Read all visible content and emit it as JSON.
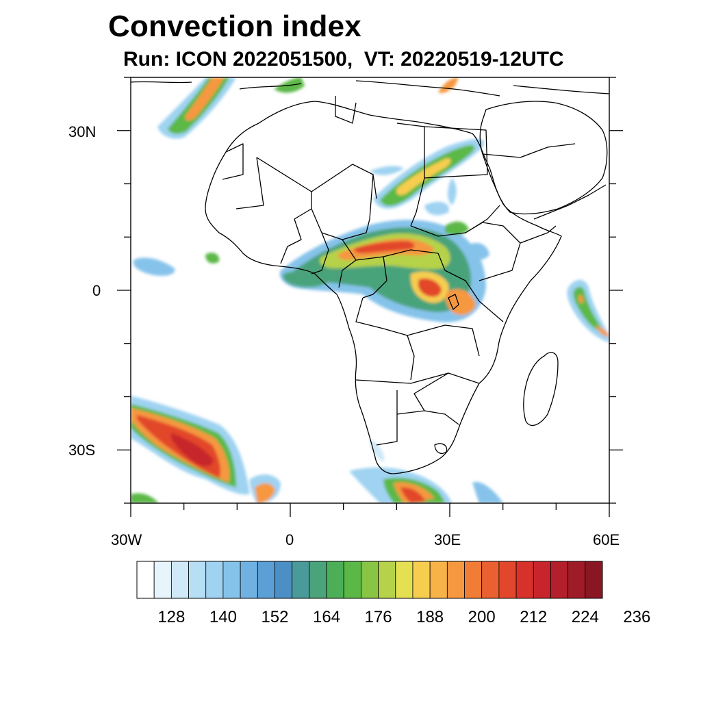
{
  "title": "Convection index",
  "subtitle": "Run: ICON 2022051500,  VT: 20220519-12UTC",
  "map": {
    "region": "Africa",
    "lon_range": [
      -30,
      60
    ],
    "lat_range": [
      -40,
      40
    ],
    "lat_ticks": [
      {
        "value": 30,
        "label": "30N"
      },
      {
        "value": 0,
        "label": "0"
      },
      {
        "value": -30,
        "label": "30S"
      }
    ],
    "lon_ticks": [
      {
        "value": -30,
        "label": "30W"
      },
      {
        "value": 0,
        "label": "0"
      },
      {
        "value": 30,
        "label": "30E"
      },
      {
        "value": 60,
        "label": "60E"
      }
    ]
  },
  "colorbar": {
    "colors": [
      "#ffffff",
      "#e8f4fc",
      "#cfe9f8",
      "#b6def5",
      "#9fd3f1",
      "#86c3ea",
      "#6fb2e2",
      "#5a9fd6",
      "#4b8fc4",
      "#4a9a9a",
      "#4aa37a",
      "#4caf58",
      "#5bb847",
      "#88c545",
      "#b5d24a",
      "#e4e052",
      "#f6cd4f",
      "#f7b347",
      "#f5983f",
      "#f17c36",
      "#eb6030",
      "#e2472c",
      "#d8302b",
      "#c7252b",
      "#b31f2a",
      "#9e1b27",
      "#891723"
    ],
    "tick_labels": [
      "128",
      "140",
      "152",
      "164",
      "176",
      "188",
      "200",
      "212",
      "224",
      "236"
    ]
  }
}
